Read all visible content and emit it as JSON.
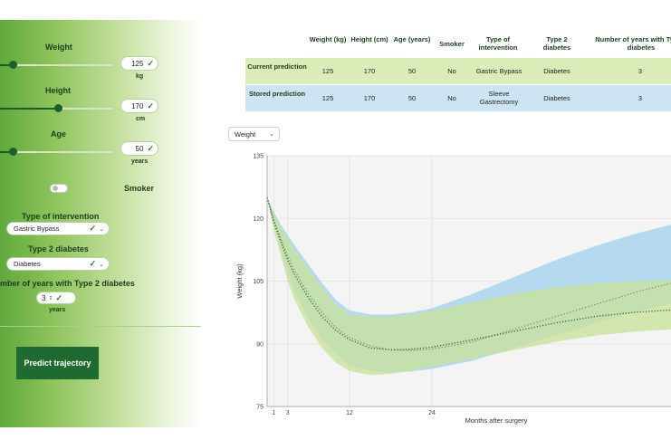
{
  "sidebar": {
    "weight": {
      "label": "Weight",
      "value": "125",
      "unit": "kg",
      "fraction": 0.08
    },
    "height": {
      "label": "Height",
      "value": "170",
      "unit": "cm",
      "fraction": 0.3
    },
    "age": {
      "label": "Age",
      "value": "50",
      "unit": "years",
      "fraction": 0.08
    },
    "smoker": {
      "label": "Smoker",
      "on": false
    },
    "intervention": {
      "label": "Type of intervention",
      "value": "Gastric Bypass"
    },
    "diabetes": {
      "label": "Type 2 diabetes",
      "value": "Diabetes"
    },
    "years_diabetes": {
      "label": "Number of years with Type 2 diabetes",
      "value": "3",
      "unit": "years"
    },
    "predict_button": "Predict trajectory"
  },
  "table": {
    "headers": [
      "Weight (kg)",
      "Height (cm)",
      "Age (years)",
      "Smoker",
      "Type of intervention",
      "Type 2 diabetes",
      "Number of years with Type 2 diabetes"
    ],
    "rows": [
      {
        "label": "Current prediction",
        "cells": [
          "125",
          "170",
          "50",
          "No",
          "Gastric Bypass",
          "Diabetes",
          "3"
        ]
      },
      {
        "label": "Stored prediction",
        "cells": [
          "125",
          "170",
          "50",
          "No",
          "Sleeve Gastrectomy",
          "Diabetes",
          "3"
        ]
      }
    ]
  },
  "metric_select": {
    "value": "Weight"
  },
  "colors": {
    "accent_dark": "#1f6a30",
    "current_band": "#c9e29a",
    "stored_band": "#a9d4ec",
    "current_row": "#dcecb8",
    "stored_row": "#cde5f2"
  },
  "chart_data": {
    "type": "line",
    "xlabel": "Months after surgery",
    "ylabel": "Weight (kg)",
    "xlim": [
      0,
      60
    ],
    "ylim": [
      75,
      135
    ],
    "x_ticks": [
      1,
      3,
      12,
      24
    ],
    "y_ticks": [
      75,
      90,
      105,
      120,
      135
    ],
    "grid": true,
    "series": [
      {
        "x": [
          0,
          1,
          2,
          3,
          4,
          6,
          8,
          10,
          12,
          15,
          18,
          21,
          24,
          30,
          36,
          42,
          48,
          54,
          60
        ],
        "values": [
          125,
          119,
          114.5,
          110,
          106.5,
          101,
          96.5,
          93.2,
          91,
          89,
          88.6,
          88.7,
          89.2,
          91,
          93,
          95,
          96.6,
          97.6,
          98.2
        ],
        "lower": [
          125,
          117,
          111,
          105,
          100.5,
          94,
          89,
          85.5,
          83.5,
          82.5,
          82.8,
          83.5,
          84.5,
          86.5,
          88.5,
          90.5,
          92,
          93,
          93.5
        ],
        "upper": [
          125,
          121,
          118,
          115,
          112.5,
          108,
          103.5,
          99.5,
          97,
          96.5,
          96.5,
          97,
          98,
          100,
          102,
          103.5,
          104.5,
          105,
          105.3
        ]
      },
      {
        "x": [
          0,
          1,
          2,
          3,
          4,
          6,
          8,
          10,
          12,
          15,
          18,
          21,
          24,
          30,
          36,
          42,
          48,
          54,
          60
        ],
        "values": [
          125,
          119.5,
          115,
          111,
          107.5,
          102,
          97.5,
          94,
          91.5,
          89.5,
          88.5,
          88.4,
          88.7,
          90.5,
          93.5,
          96.5,
          99.5,
          102.5,
          105
        ],
        "lower": [
          125,
          118,
          112,
          107,
          102.5,
          96,
          91,
          87.5,
          85,
          83.5,
          83.2,
          83.4,
          84,
          86,
          89,
          92,
          95,
          97.8,
          100
        ],
        "upper": [
          125,
          121.5,
          118.5,
          116,
          113.5,
          109,
          104.5,
          100.5,
          98,
          97,
          97,
          97.5,
          98.5,
          102,
          106,
          110,
          113.5,
          116.5,
          119
        ]
      }
    ]
  }
}
